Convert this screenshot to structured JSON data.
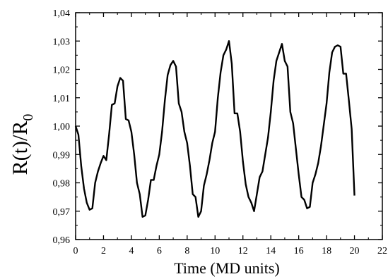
{
  "chart_data": {
    "type": "line",
    "title": "",
    "xlabel": "Time (MD units)",
    "ylabel_main": "R(t)/R",
    "ylabel_sub": "0",
    "xlim": [
      0,
      22
    ],
    "ylim": [
      0.96,
      1.04
    ],
    "xticks": [
      0,
      2,
      4,
      6,
      8,
      10,
      12,
      14,
      16,
      18,
      20,
      22
    ],
    "yticks": [
      0.96,
      0.97,
      0.98,
      0.99,
      1.0,
      1.01,
      1.02,
      1.03,
      1.04
    ],
    "xtick_labels": [
      "0",
      "2",
      "4",
      "6",
      "8",
      "10",
      "12",
      "14",
      "16",
      "18",
      "20",
      "22"
    ],
    "ytick_labels": [
      "0,96",
      "0,97",
      "0,98",
      "0,99",
      "1,00",
      "1,01",
      "1,02",
      "1,03",
      "1,04"
    ],
    "grid": false,
    "legend": "none",
    "line_color": "#000000",
    "series": [
      {
        "x": [
          0.0,
          0.2,
          0.4,
          0.6,
          0.8,
          1.0,
          1.2,
          1.4,
          1.6,
          1.8,
          2.0,
          2.2,
          2.4,
          2.6,
          2.8,
          3.0,
          3.2,
          3.4,
          3.6,
          3.8,
          4.0,
          4.2,
          4.4,
          4.6,
          4.8,
          5.0,
          5.2,
          5.4,
          5.6,
          5.8,
          6.0,
          6.2,
          6.4,
          6.6,
          6.8,
          7.0,
          7.2,
          7.4,
          7.6,
          7.8,
          8.0,
          8.2,
          8.4,
          8.6,
          8.8,
          9.0,
          9.2,
          9.4,
          9.6,
          9.8,
          10.0,
          10.2,
          10.4,
          10.6,
          10.8,
          11.0,
          11.2,
          11.4,
          11.6,
          11.8,
          12.0,
          12.2,
          12.4,
          12.6,
          12.8,
          13.0,
          13.2,
          13.4,
          13.6,
          13.8,
          14.0,
          14.2,
          14.4,
          14.6,
          14.8,
          15.0,
          15.2,
          15.4,
          15.6,
          15.8,
          16.0,
          16.2,
          16.4,
          16.6,
          16.8,
          17.0,
          17.2,
          17.4,
          17.6,
          17.8,
          18.0,
          18.2,
          18.4,
          18.6,
          18.8,
          19.0,
          19.2,
          19.4,
          19.6,
          19.8,
          20.0
        ],
        "y": [
          1.0,
          0.997,
          0.986,
          0.978,
          0.973,
          0.9705,
          0.971,
          0.98,
          0.984,
          0.987,
          0.9895,
          0.988,
          0.997,
          1.0075,
          1.008,
          1.014,
          1.017,
          1.016,
          1.0025,
          1.002,
          0.998,
          0.99,
          0.98,
          0.976,
          0.968,
          0.9685,
          0.974,
          0.981,
          0.981,
          0.986,
          0.99,
          0.998,
          1.009,
          1.018,
          1.0215,
          1.023,
          1.021,
          1.008,
          1.005,
          0.998,
          0.994,
          0.986,
          0.976,
          0.975,
          0.968,
          0.97,
          0.979,
          0.983,
          0.988,
          0.994,
          0.998,
          1.01,
          1.019,
          1.025,
          1.027,
          1.03,
          1.022,
          1.0045,
          1.0045,
          0.998,
          0.9875,
          0.9795,
          0.975,
          0.973,
          0.97,
          0.976,
          0.982,
          0.984,
          0.99,
          0.996,
          1.005,
          1.016,
          1.023,
          1.026,
          1.029,
          1.023,
          1.021,
          1.005,
          1.001,
          0.992,
          0.983,
          0.975,
          0.974,
          0.971,
          0.9715,
          0.98,
          0.983,
          0.987,
          0.993,
          1.0005,
          1.008,
          1.019,
          1.026,
          1.028,
          1.0285,
          1.028,
          1.0185,
          1.0185,
          1.009,
          0.999,
          0.9755
        ]
      }
    ]
  }
}
